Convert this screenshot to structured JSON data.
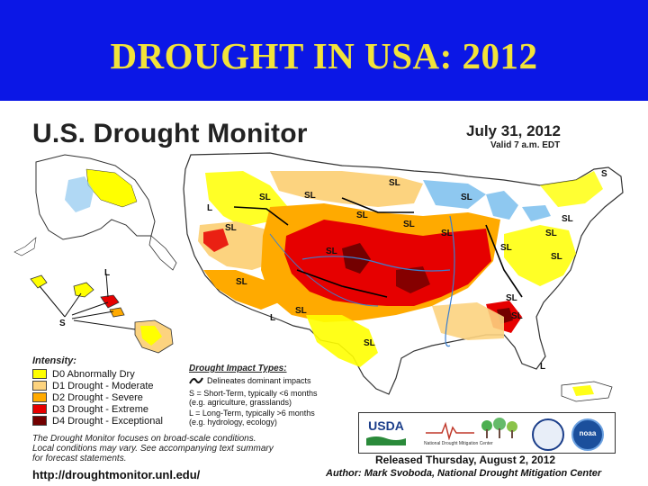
{
  "slide": {
    "title": "DROUGHT IN USA: 2012"
  },
  "monitor": {
    "title": "U.S. Drought Monitor",
    "date": "July 31, 2012",
    "valid": "Valid 7 a.m. EDT"
  },
  "map": {
    "impact_labels": [
      "SL",
      "SL",
      "SL",
      "SL",
      "SL",
      "SL",
      "SL",
      "SL",
      "SL",
      "SL",
      "SL",
      "SL",
      "SL",
      "SL",
      "SL",
      "SL",
      "SL",
      "SL",
      "L",
      "L",
      "L",
      "S",
      "L",
      "S"
    ],
    "colors": {
      "d0": "#ffff00",
      "d1": "#fcd37f",
      "d2": "#ffaa00",
      "d3": "#e60000",
      "d4": "#730000",
      "water": "#8ec8f0",
      "land": "#ffffff"
    }
  },
  "legend": {
    "title": "Intensity:",
    "items": [
      {
        "label": "D0 Abnormally Dry",
        "color": "#ffff00"
      },
      {
        "label": "D1 Drought - Moderate",
        "color": "#fcd37f"
      },
      {
        "label": "D2 Drought - Severe",
        "color": "#ffaa00"
      },
      {
        "label": "D3 Drought - Extreme",
        "color": "#e60000"
      },
      {
        "label": "D4 Drought - Exceptional",
        "color": "#730000"
      }
    ]
  },
  "impact": {
    "title": "Drought Impact Types:",
    "delineates": "Delineates dominant impacts",
    "short_line1": "S = Short-Term, typically <6 months",
    "short_line2": "(e.g. agriculture, grasslands)",
    "long_line1": "L = Long-Term, typically >6 months",
    "long_line2": "(e.g. hydrology, ecology)"
  },
  "note": {
    "line1": "The Drought Monitor focuses on broad-scale conditions.",
    "line2": "Local conditions may vary. See accompanying text summary",
    "line3": "for forecast statements."
  },
  "footer": {
    "url": "http://droughtmonitor.unl.edu/",
    "released": "Released Thursday, August 2, 2012",
    "author": "Author: Mark Svoboda, National Drought Mitigation Center"
  },
  "logos": {
    "usda": "USDA",
    "ndmc": "National Drought Mitigation Center",
    "noaa": "noaa"
  }
}
